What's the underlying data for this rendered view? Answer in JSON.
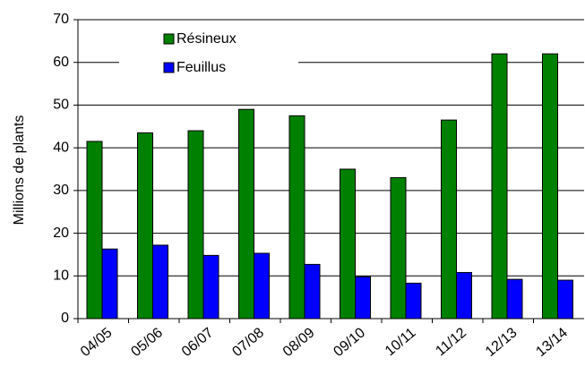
{
  "chart_data": {
    "type": "bar",
    "y_label": "Millions de plants",
    "categories": [
      "04/05",
      "05/06",
      "06/07",
      "07/08",
      "08/09",
      "09/10",
      "10/11",
      "11/12",
      "12/13",
      "13/14"
    ],
    "series": [
      {
        "name": "Résineux",
        "color": "#008000",
        "values": [
          41.5,
          43.5,
          44,
          49,
          47.5,
          35,
          33,
          46.5,
          62,
          62
        ]
      },
      {
        "name": "Feuillus",
        "color": "#0000ff",
        "values": [
          16.3,
          17.2,
          14.8,
          15.3,
          12.7,
          9.8,
          8.3,
          10.8,
          9.2,
          9.0
        ]
      }
    ],
    "ylim": [
      0,
      70
    ],
    "yticks": [
      0,
      10,
      20,
      30,
      40,
      50,
      60,
      70
    ],
    "grid": true,
    "legend": "top-left"
  }
}
